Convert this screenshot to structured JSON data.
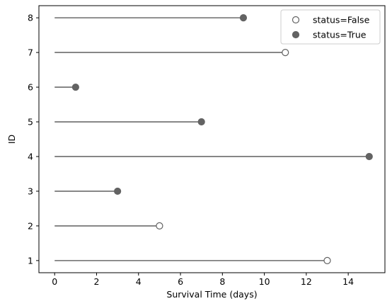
{
  "chart_data": {
    "type": "scatter",
    "subtype": "lollipop-horizontal",
    "xlabel": "Survival Time (days)",
    "ylabel": "ID",
    "xlim": [
      -0.75,
      15.75
    ],
    "ylim": [
      0.65,
      8.35
    ],
    "x_ticks": [
      "0",
      "2",
      "4",
      "6",
      "8",
      "10",
      "12",
      "14"
    ],
    "y_ticks": [
      "1",
      "2",
      "3",
      "4",
      "5",
      "6",
      "7",
      "8"
    ],
    "grid": false,
    "legend_position": "top-right",
    "colors": {
      "stem": "#6b6b6b",
      "marker": "#636363"
    },
    "legend": [
      {
        "label": "status=False",
        "filled": false
      },
      {
        "label": "status=True",
        "filled": true
      }
    ],
    "points": [
      {
        "id": 1,
        "time": 13,
        "status": false
      },
      {
        "id": 2,
        "time": 5,
        "status": false
      },
      {
        "id": 3,
        "time": 3,
        "status": true
      },
      {
        "id": 4,
        "time": 15,
        "status": true
      },
      {
        "id": 5,
        "time": 7,
        "status": true
      },
      {
        "id": 6,
        "time": 1,
        "status": true
      },
      {
        "id": 7,
        "time": 11,
        "status": false
      },
      {
        "id": 8,
        "time": 9,
        "status": true
      }
    ]
  }
}
